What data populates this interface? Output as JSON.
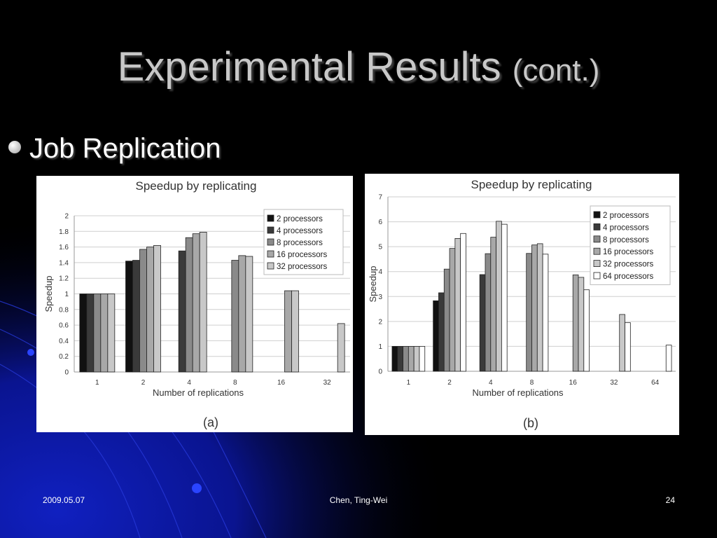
{
  "slide": {
    "title_main": "Experimental Results",
    "title_sub": "(cont.)",
    "bullet": "Job Replication",
    "footer_date": "2009.05.07",
    "footer_author": "Chen, Ting-Wei",
    "footer_page": "24"
  },
  "colors": {
    "background": "#000000",
    "accent_blue": "#0a1aa0",
    "series": [
      "#111111",
      "#3a3a3a",
      "#8a8a8a",
      "#a8a8a8",
      "#c8c8c8",
      "#ffffff"
    ]
  },
  "chart_data": [
    {
      "type": "bar",
      "title": "Speedup by replicating",
      "xlabel": "Number of replications",
      "ylabel": "Speedup",
      "caption": "(a)",
      "categories": [
        "1",
        "2",
        "4",
        "8",
        "16",
        "32"
      ],
      "ylim": [
        0,
        2
      ],
      "yticks": [
        "0",
        "0.2",
        "0.4",
        "0.6",
        "0.8",
        "1",
        "1.2",
        "1.4",
        "1.6",
        "1.8",
        "2"
      ],
      "grid": true,
      "legend_position": "top-right",
      "series": [
        {
          "name": "2 processors",
          "values": [
            1.0,
            1.42,
            null,
            null,
            null,
            null
          ]
        },
        {
          "name": "4 processors",
          "values": [
            1.0,
            1.43,
            1.55,
            null,
            null,
            null
          ]
        },
        {
          "name": "8 processors",
          "values": [
            1.0,
            1.57,
            1.72,
            1.43,
            null,
            null
          ]
        },
        {
          "name": "16 processors",
          "values": [
            1.0,
            1.6,
            1.77,
            1.49,
            1.04,
            null
          ]
        },
        {
          "name": "32 processors",
          "values": [
            1.0,
            1.62,
            1.79,
            1.48,
            1.04,
            0.62
          ]
        }
      ]
    },
    {
      "type": "bar",
      "title": "Speedup by replicating",
      "xlabel": "Number of replications",
      "ylabel": "Speedup",
      "caption": "(b)",
      "categories": [
        "1",
        "2",
        "4",
        "8",
        "16",
        "32",
        "64"
      ],
      "ylim": [
        0,
        7
      ],
      "yticks": [
        "0",
        "1",
        "2",
        "3",
        "4",
        "5",
        "6",
        "7"
      ],
      "grid": true,
      "legend_position": "top-right",
      "series": [
        {
          "name": "2 processors",
          "values": [
            1.0,
            2.83,
            null,
            null,
            null,
            null,
            null
          ]
        },
        {
          "name": "4 processors",
          "values": [
            1.0,
            3.15,
            3.88,
            null,
            null,
            null,
            null
          ]
        },
        {
          "name": "8 processors",
          "values": [
            1.0,
            4.1,
            4.72,
            4.73,
            null,
            null,
            null
          ]
        },
        {
          "name": "16 processors",
          "values": [
            1.0,
            4.93,
            5.38,
            5.07,
            3.87,
            null,
            null
          ]
        },
        {
          "name": "32 processors",
          "values": [
            1.0,
            5.33,
            6.02,
            5.12,
            3.77,
            2.28,
            null
          ]
        },
        {
          "name": "64 processors",
          "values": [
            1.0,
            5.53,
            5.9,
            4.7,
            3.27,
            1.95,
            1.05
          ]
        }
      ]
    }
  ]
}
